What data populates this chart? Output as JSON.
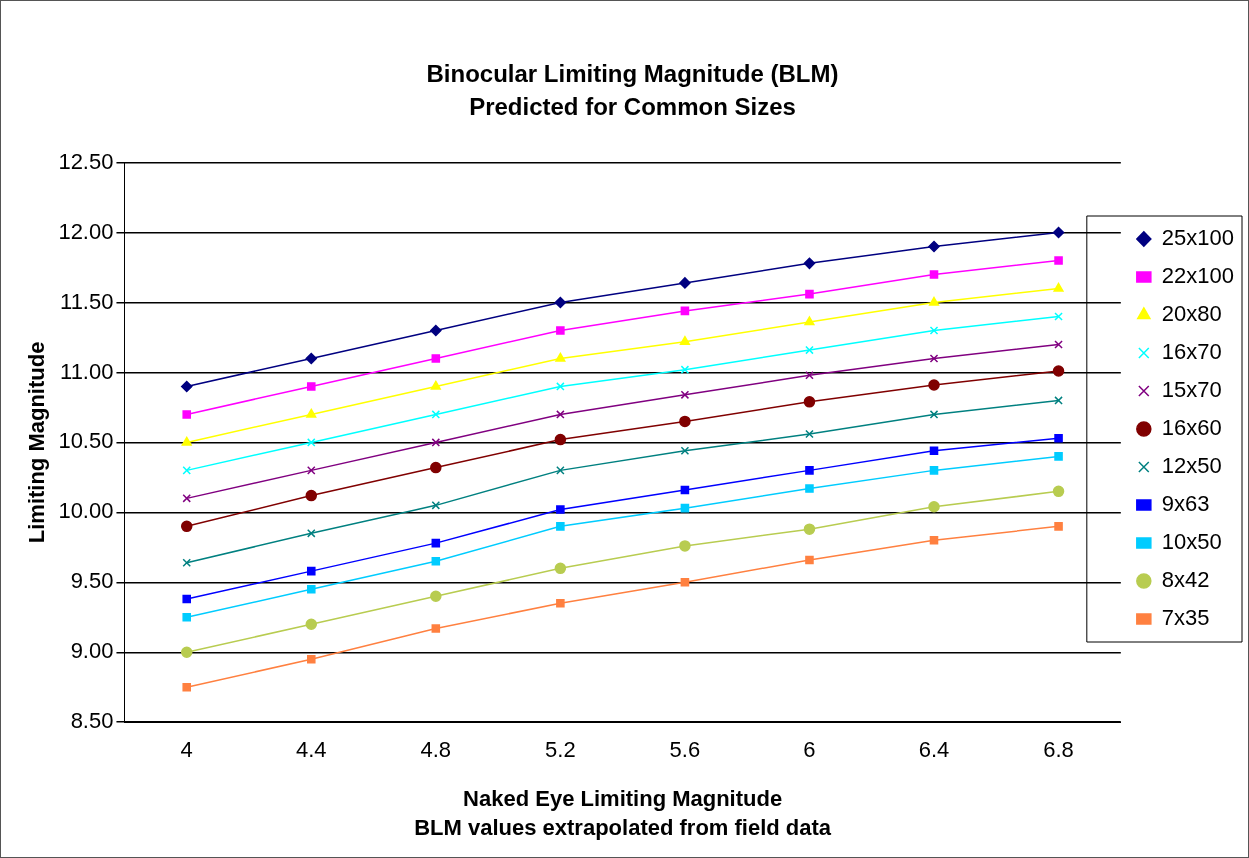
{
  "chart_data": {
    "type": "line",
    "title": "Binocular Limiting Magnitude (BLM)",
    "subtitle": "Predicted for Common Sizes",
    "xlabel": "Naked Eye Limiting Magnitude",
    "ylabel": "Limiting Magnitude",
    "annotations": [
      "BLM values extrapolated from field data"
    ],
    "categories": [
      "4",
      "4.4",
      "4.8",
      "5.2",
      "5.6",
      "6",
      "6.4",
      "6.8"
    ],
    "ylim": [
      8.5,
      12.5
    ],
    "yticks": [
      {
        "value": 8.5,
        "label": "8.50"
      },
      {
        "value": 9,
        "label": "9.00"
      },
      {
        "value": 9.5,
        "label": "9.50"
      },
      {
        "value": 10,
        "label": "10.00"
      },
      {
        "value": 10.5,
        "label": "10.50"
      },
      {
        "value": 11,
        "label": "11.00"
      },
      {
        "value": 11.5,
        "label": "11.50"
      },
      {
        "value": 12,
        "label": "12.00"
      },
      {
        "value": 12.5,
        "label": "12.50"
      }
    ],
    "grid": "y",
    "legend": "right",
    "line_style": "solid",
    "series": [
      {
        "name": "25x100",
        "color": "#000080",
        "marker": "diamond",
        "values": [
          10.9,
          11.1,
          11.3,
          11.5,
          11.64,
          11.78,
          11.9,
          12.0
        ]
      },
      {
        "name": "22x100",
        "color": "#ff00ff",
        "marker": "square",
        "values": [
          10.7,
          10.9,
          11.1,
          11.3,
          11.44,
          11.56,
          11.7,
          11.8
        ]
      },
      {
        "name": "20x80",
        "color": "#ffff00",
        "marker": "triangle",
        "values": [
          10.5,
          10.7,
          10.9,
          11.1,
          11.22,
          11.36,
          11.5,
          11.6
        ]
      },
      {
        "name": "16x70",
        "color": "#00ffff",
        "marker": "cross",
        "values": [
          10.3,
          10.5,
          10.7,
          10.9,
          11.02,
          11.16,
          11.3,
          11.4
        ]
      },
      {
        "name": "15x70",
        "color": "#800080",
        "marker": "cross",
        "values": [
          10.1,
          10.3,
          10.5,
          10.7,
          10.84,
          10.98,
          11.1,
          11.2
        ]
      },
      {
        "name": "16x60",
        "color": "#800000",
        "marker": "circle",
        "values": [
          9.9,
          10.12,
          10.32,
          10.52,
          10.65,
          10.79,
          10.91,
          11.01
        ]
      },
      {
        "name": "12x50",
        "color": "#008080",
        "marker": "cross",
        "values": [
          9.64,
          9.85,
          10.05,
          10.3,
          10.44,
          10.56,
          10.7,
          10.8
        ]
      },
      {
        "name": "9x63",
        "color": "#0000ff",
        "marker": "square",
        "values": [
          9.38,
          9.58,
          9.78,
          10.02,
          10.16,
          10.3,
          10.44,
          10.53
        ]
      },
      {
        "name": "10x50",
        "color": "#00ccff",
        "marker": "square",
        "values": [
          9.25,
          9.45,
          9.65,
          9.9,
          10.03,
          10.17,
          10.3,
          10.4
        ]
      },
      {
        "name": "8x42",
        "color": "#b8cc50",
        "marker": "circle",
        "values": [
          9.0,
          9.2,
          9.4,
          9.6,
          9.76,
          9.88,
          10.04,
          10.15
        ]
      },
      {
        "name": "7x35",
        "color": "#ff8040",
        "marker": "square",
        "values": [
          8.75,
          8.95,
          9.17,
          9.35,
          9.5,
          9.66,
          9.8,
          9.9
        ]
      }
    ]
  }
}
